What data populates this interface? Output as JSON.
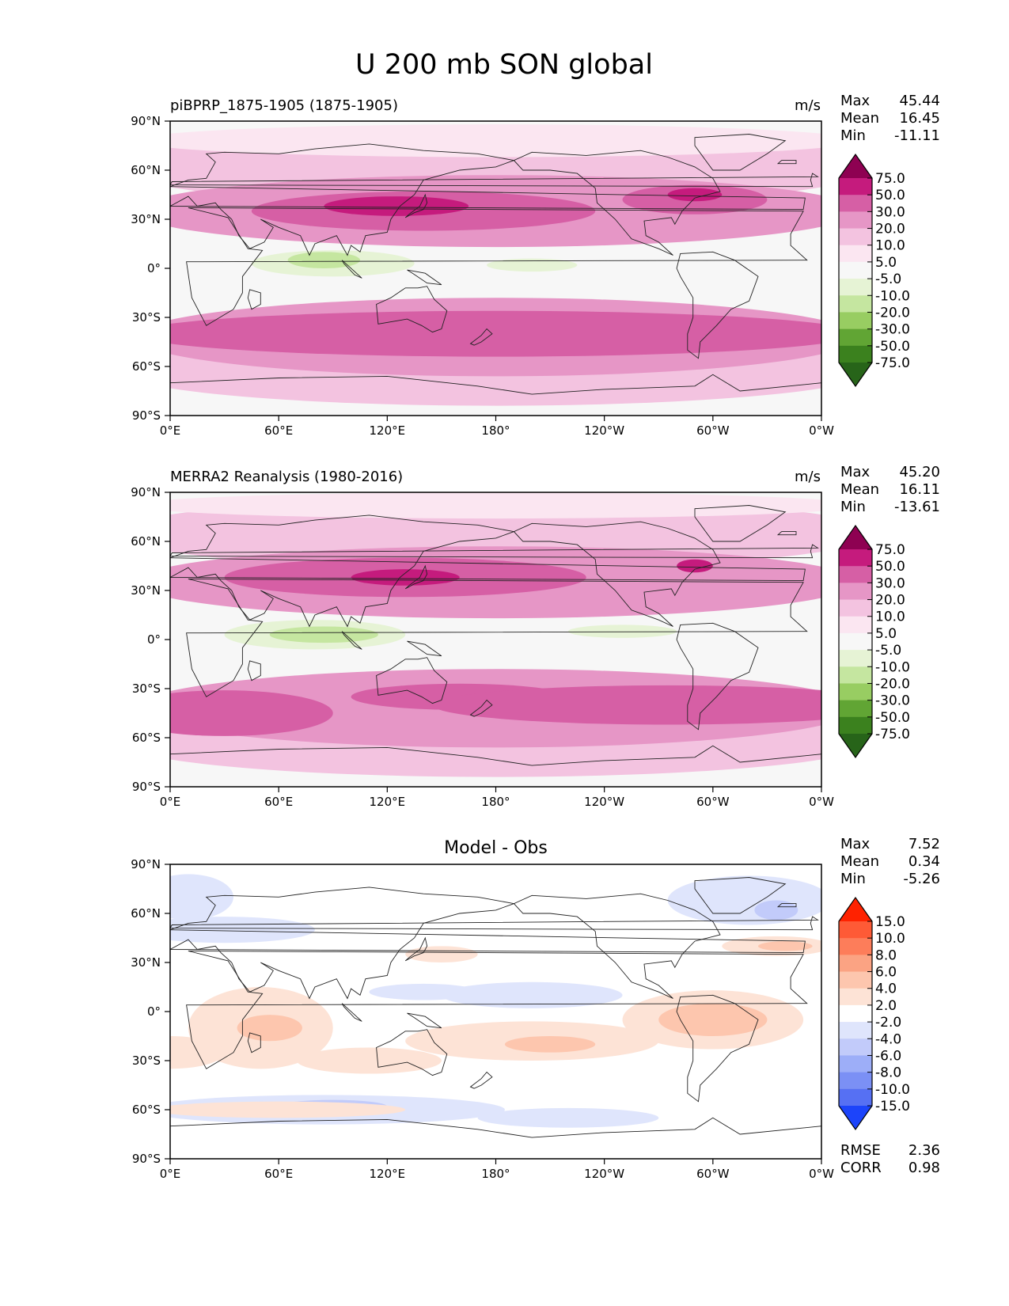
{
  "figure": {
    "title": "U 200 mb SON global"
  },
  "axes": {
    "lat_labels": [
      "90°N",
      "60°N",
      "30°N",
      "0°",
      "30°S",
      "60°S",
      "90°S"
    ],
    "lon_labels": [
      "0°E",
      "60°E",
      "120°E",
      "180°",
      "120°W",
      "60°W",
      "0°W"
    ]
  },
  "labels": {
    "max": "Max",
    "mean": "Mean",
    "min": "Min",
    "rmse": "RMSE",
    "corr": "CORR"
  },
  "chart_data": [
    {
      "type": "heatmap",
      "title": "piBPRP_1875-1905 (1875-1905)",
      "units": "m/s",
      "stats": {
        "max": "45.44",
        "mean": "16.45",
        "min": "-11.11"
      },
      "colorbar": {
        "levels": [
          "75.0",
          "50.0",
          "30.0",
          "20.0",
          "10.0",
          "5.0",
          "-5.0",
          "-10.0",
          "-20.0",
          "-30.0",
          "-50.0",
          "-75.0"
        ],
        "colors": [
          "#8e0152",
          "#c51b7d",
          "#d65fa5",
          "#e696c6",
          "#f3c3e0",
          "#fbe6f1",
          "#f7f7f7",
          "#e6f3d5",
          "#c5e6a0",
          "#98cd62",
          "#61a534",
          "#3b811e",
          "#276419"
        ]
      }
    },
    {
      "type": "heatmap",
      "title": "MERRA2 Reanalysis (1980-2016)",
      "units": "m/s",
      "stats": {
        "max": "45.20",
        "mean": "16.11",
        "min": "-13.61"
      },
      "colorbar": {
        "levels": [
          "75.0",
          "50.0",
          "30.0",
          "20.0",
          "10.0",
          "5.0",
          "-5.0",
          "-10.0",
          "-20.0",
          "-30.0",
          "-50.0",
          "-75.0"
        ],
        "colors": [
          "#8e0152",
          "#c51b7d",
          "#d65fa5",
          "#e696c6",
          "#f3c3e0",
          "#fbe6f1",
          "#f7f7f7",
          "#e6f3d5",
          "#c5e6a0",
          "#98cd62",
          "#61a534",
          "#3b811e",
          "#276419"
        ]
      }
    },
    {
      "type": "heatmap",
      "title": "Model - Obs",
      "units": "",
      "stats": {
        "max": "7.52",
        "mean": "0.34",
        "min": "-5.26"
      },
      "rmse": "2.36",
      "corr": "0.98",
      "colorbar": {
        "levels": [
          "15.0",
          "10.0",
          "8.0",
          "6.0",
          "4.0",
          "2.0",
          "-2.0",
          "-4.0",
          "-6.0",
          "-8.0",
          "-10.0",
          "-15.0"
        ],
        "colors": [
          "#ff2200",
          "#fe5a36",
          "#fd7d5a",
          "#fba383",
          "#fdc6ae",
          "#fde3d6",
          "#ffffff",
          "#dfe5fc",
          "#c2cbfa",
          "#9daef8",
          "#7b90f5",
          "#5670f3",
          "#1c44fa"
        ]
      }
    }
  ]
}
